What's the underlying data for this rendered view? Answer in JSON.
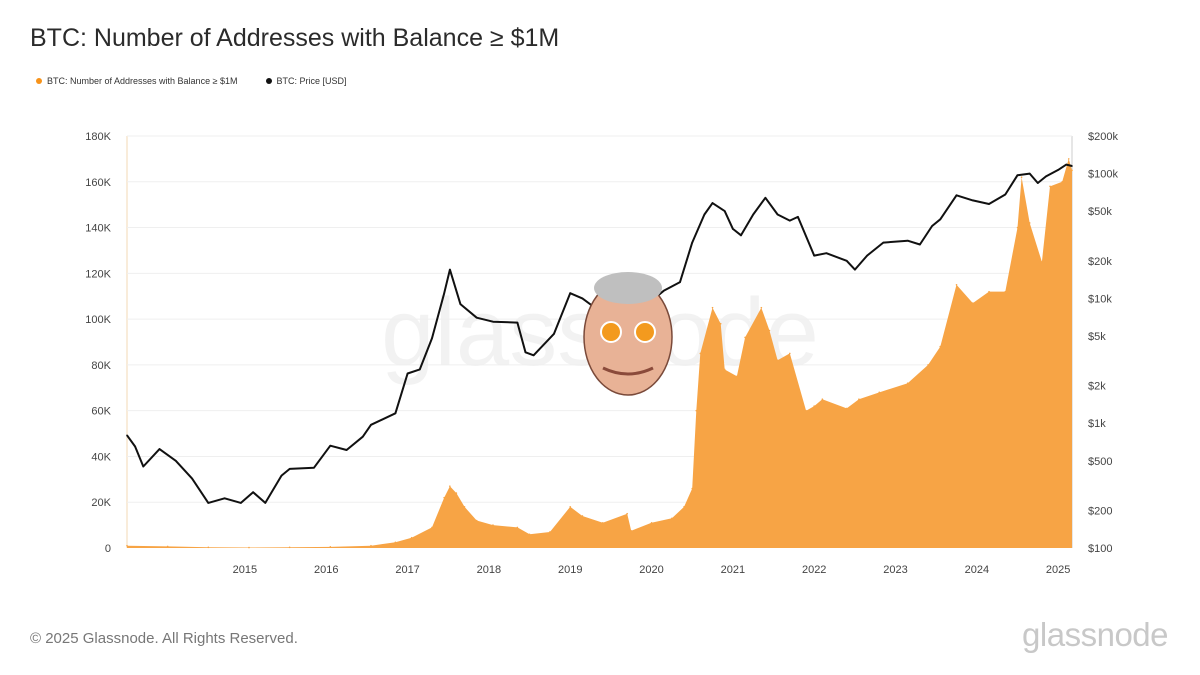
{
  "title": "BTC: Number of Addresses with Balance ≥ $1M",
  "legend": {
    "series1": "BTC: Number of Addresses with Balance ≥ $1M",
    "series2": "BTC: Price [USD]"
  },
  "footer": {
    "copyright": "© 2025 Glassnode. All Rights Reserved.",
    "brand": "glassnode",
    "watermark": "glassnode"
  },
  "colors": {
    "area": "#f7a445",
    "price": "#111111",
    "legend_area": "#f7931a"
  },
  "chart_data": {
    "type": "area",
    "title": "BTC: Number of Addresses with Balance ≥ $1M",
    "x_range": [
      2014.0,
      2025.62
    ],
    "x_ticks": [
      "2015",
      "2016",
      "2017",
      "2018",
      "2019",
      "2020",
      "2021",
      "2022",
      "2023",
      "2024",
      "2025"
    ],
    "y_left": {
      "range": [
        0,
        180000
      ],
      "ticks": [
        "0",
        "20K",
        "40K",
        "60K",
        "80K",
        "100K",
        "120K",
        "140K",
        "160K",
        "180K"
      ]
    },
    "y_right": {
      "scale": "log",
      "range": [
        100,
        200000
      ],
      "ticks": [
        "$100",
        "$200",
        "$500",
        "$1k",
        "$2k",
        "$5k",
        "$10k",
        "$20k",
        "$50k",
        "$100k",
        "$200k"
      ]
    },
    "series": [
      {
        "name": "BTC: Number of Addresses with Balance ≥ $1M",
        "axis": "left",
        "kind": "area",
        "points": [
          [
            2014.0,
            1000
          ],
          [
            2014.5,
            700
          ],
          [
            2015.0,
            300
          ],
          [
            2015.5,
            200
          ],
          [
            2016.0,
            300
          ],
          [
            2016.5,
            500
          ],
          [
            2017.0,
            1000
          ],
          [
            2017.3,
            2500
          ],
          [
            2017.5,
            4500
          ],
          [
            2017.75,
            9000
          ],
          [
            2017.9,
            22000
          ],
          [
            2017.97,
            27000
          ],
          [
            2018.05,
            24000
          ],
          [
            2018.15,
            18000
          ],
          [
            2018.3,
            12000
          ],
          [
            2018.5,
            10000
          ],
          [
            2018.8,
            9000
          ],
          [
            2018.95,
            6000
          ],
          [
            2019.2,
            7000
          ],
          [
            2019.45,
            18000
          ],
          [
            2019.6,
            14000
          ],
          [
            2019.85,
            11000
          ],
          [
            2020.15,
            15000
          ],
          [
            2020.2,
            7500
          ],
          [
            2020.45,
            11000
          ],
          [
            2020.7,
            13000
          ],
          [
            2020.85,
            18000
          ],
          [
            2020.95,
            26000
          ],
          [
            2021.0,
            60000
          ],
          [
            2021.05,
            85000
          ],
          [
            2021.2,
            105000
          ],
          [
            2021.3,
            98000
          ],
          [
            2021.35,
            78000
          ],
          [
            2021.5,
            75000
          ],
          [
            2021.6,
            92000
          ],
          [
            2021.8,
            105000
          ],
          [
            2021.9,
            95000
          ],
          [
            2022.0,
            82000
          ],
          [
            2022.15,
            85000
          ],
          [
            2022.35,
            60000
          ],
          [
            2022.45,
            62000
          ],
          [
            2022.55,
            65000
          ],
          [
            2022.85,
            61000
          ],
          [
            2023.0,
            65000
          ],
          [
            2023.25,
            68000
          ],
          [
            2023.6,
            72000
          ],
          [
            2023.85,
            80000
          ],
          [
            2024.0,
            88000
          ],
          [
            2024.2,
            115000
          ],
          [
            2024.4,
            107000
          ],
          [
            2024.6,
            112000
          ],
          [
            2024.8,
            112000
          ],
          [
            2024.95,
            140000
          ],
          [
            2025.0,
            162000
          ],
          [
            2025.1,
            142000
          ],
          [
            2025.25,
            125000
          ],
          [
            2025.35,
            158000
          ],
          [
            2025.5,
            160000
          ],
          [
            2025.58,
            170000
          ],
          [
            2025.62,
            165000
          ]
        ]
      },
      {
        "name": "BTC: Price [USD]",
        "axis": "right",
        "kind": "line",
        "points": [
          [
            2014.0,
            800
          ],
          [
            2014.1,
            650
          ],
          [
            2014.2,
            450
          ],
          [
            2014.4,
            620
          ],
          [
            2014.6,
            500
          ],
          [
            2014.8,
            360
          ],
          [
            2015.0,
            230
          ],
          [
            2015.2,
            250
          ],
          [
            2015.4,
            230
          ],
          [
            2015.55,
            280
          ],
          [
            2015.7,
            230
          ],
          [
            2015.9,
            380
          ],
          [
            2016.0,
            430
          ],
          [
            2016.3,
            440
          ],
          [
            2016.5,
            660
          ],
          [
            2016.7,
            610
          ],
          [
            2016.9,
            780
          ],
          [
            2017.0,
            970
          ],
          [
            2017.3,
            1200
          ],
          [
            2017.45,
            2500
          ],
          [
            2017.6,
            2700
          ],
          [
            2017.75,
            4800
          ],
          [
            2017.9,
            11000
          ],
          [
            2017.97,
            17000
          ],
          [
            2018.1,
            9000
          ],
          [
            2018.3,
            7000
          ],
          [
            2018.5,
            6500
          ],
          [
            2018.8,
            6400
          ],
          [
            2018.9,
            3700
          ],
          [
            2019.0,
            3500
          ],
          [
            2019.25,
            5200
          ],
          [
            2019.45,
            11000
          ],
          [
            2019.6,
            10000
          ],
          [
            2019.8,
            8000
          ],
          [
            2019.95,
            7200
          ],
          [
            2020.1,
            9500
          ],
          [
            2020.2,
            5000
          ],
          [
            2020.4,
            9000
          ],
          [
            2020.6,
            11500
          ],
          [
            2020.8,
            13500
          ],
          [
            2020.95,
            28000
          ],
          [
            2021.1,
            47000
          ],
          [
            2021.2,
            58000
          ],
          [
            2021.35,
            50000
          ],
          [
            2021.45,
            36000
          ],
          [
            2021.55,
            32000
          ],
          [
            2021.7,
            47000
          ],
          [
            2021.85,
            64000
          ],
          [
            2022.0,
            47000
          ],
          [
            2022.15,
            42000
          ],
          [
            2022.25,
            45000
          ],
          [
            2022.45,
            22000
          ],
          [
            2022.6,
            23000
          ],
          [
            2022.85,
            20000
          ],
          [
            2022.95,
            17000
          ],
          [
            2023.1,
            22000
          ],
          [
            2023.3,
            28000
          ],
          [
            2023.6,
            29000
          ],
          [
            2023.75,
            27000
          ],
          [
            2023.9,
            38000
          ],
          [
            2024.0,
            43000
          ],
          [
            2024.2,
            67000
          ],
          [
            2024.4,
            61000
          ],
          [
            2024.6,
            57000
          ],
          [
            2024.8,
            68000
          ],
          [
            2024.95,
            97000
          ],
          [
            2025.1,
            100000
          ],
          [
            2025.2,
            84000
          ],
          [
            2025.3,
            95000
          ],
          [
            2025.45,
            107000
          ],
          [
            2025.55,
            118000
          ],
          [
            2025.62,
            115000
          ]
        ]
      }
    ]
  }
}
